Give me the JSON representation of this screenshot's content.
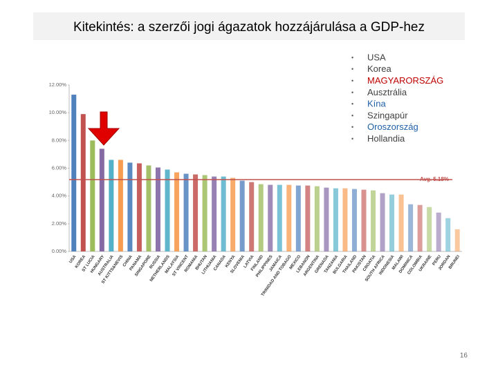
{
  "slide_title": "Kitekintés: a szerzői jogi ágazatok hozzájárulása a GDP-hez",
  "bullets": [
    {
      "text": "USA",
      "color": "#404040"
    },
    {
      "text": "Korea",
      "color": "#404040"
    },
    {
      "text": "MAGYARORSZÁG",
      "color": "#c00000"
    },
    {
      "text": "Ausztrália",
      "color": "#404040"
    },
    {
      "text": "Kína",
      "color": "#1f5fa8"
    },
    {
      "text": "Szingapúr",
      "color": "#404040"
    },
    {
      "text": "Oroszország",
      "color": "#1f5fa8"
    },
    {
      "text": "Hollandia",
      "color": "#404040"
    }
  ],
  "page_number": "16",
  "chart_data": {
    "type": "bar",
    "categories": [
      "USA",
      "KOREA",
      "ST LUCIA",
      "HUNGARY",
      "AUSTRALIA",
      "ST KITTS&NEVIS",
      "CHINA",
      "PANAMA",
      "SINGAPORE",
      "RUSSIA",
      "NETHERLANDS",
      "MALAYSIA",
      "ST VINCENT",
      "ROMANIA",
      "BHUTAN",
      "LITHUANIA",
      "CANADA",
      "KENYA",
      "SLOVENIA",
      "LATVIA",
      "FINLAND",
      "PHILIPPINES",
      "JAMAICA",
      "TRINIDAD AND TOBAGO",
      "MEXICO",
      "LEBANON",
      "ARGENTINA",
      "GRENADA",
      "TANZANIA",
      "BULGARIA",
      "THAILAND",
      "PAKISTAN",
      "CROATIA",
      "SOUTH AFRICA",
      "INDONESIA",
      "MALAWI",
      "DOMINICA",
      "COLOMBIA",
      "UKRAINE",
      "PERU",
      "JORDAN",
      "BRUNEI"
    ],
    "values": [
      11.3,
      9.9,
      8.0,
      7.4,
      6.6,
      6.6,
      6.4,
      6.35,
      6.2,
      6.05,
      5.9,
      5.7,
      5.6,
      5.55,
      5.5,
      5.4,
      5.4,
      5.3,
      5.1,
      5.0,
      4.85,
      4.8,
      4.8,
      4.8,
      4.75,
      4.75,
      4.7,
      4.6,
      4.55,
      4.55,
      4.5,
      4.45,
      4.4,
      4.2,
      4.1,
      4.1,
      3.4,
      3.35,
      3.2,
      2.8,
      2.4,
      1.6
    ],
    "colors": [
      "#4f81bd",
      "#c0504d",
      "#9bbb59",
      "#8064a2",
      "#4bacc6",
      "#f79646"
    ],
    "ylim": [
      0,
      12
    ],
    "yticks": [
      {
        "value": 0,
        "label": "0.00%"
      },
      {
        "value": 2,
        "label": "2.00%"
      },
      {
        "value": 4,
        "label": "4.00%"
      },
      {
        "value": 6,
        "label": "6.00%"
      },
      {
        "value": 8,
        "label": "8.00%"
      },
      {
        "value": 10,
        "label": "10.00%"
      },
      {
        "value": 12,
        "label": "12.00%"
      }
    ],
    "grid": false,
    "average": {
      "value": 5.18,
      "label": "Avg. 5.18%",
      "color": "#c0504d"
    }
  }
}
